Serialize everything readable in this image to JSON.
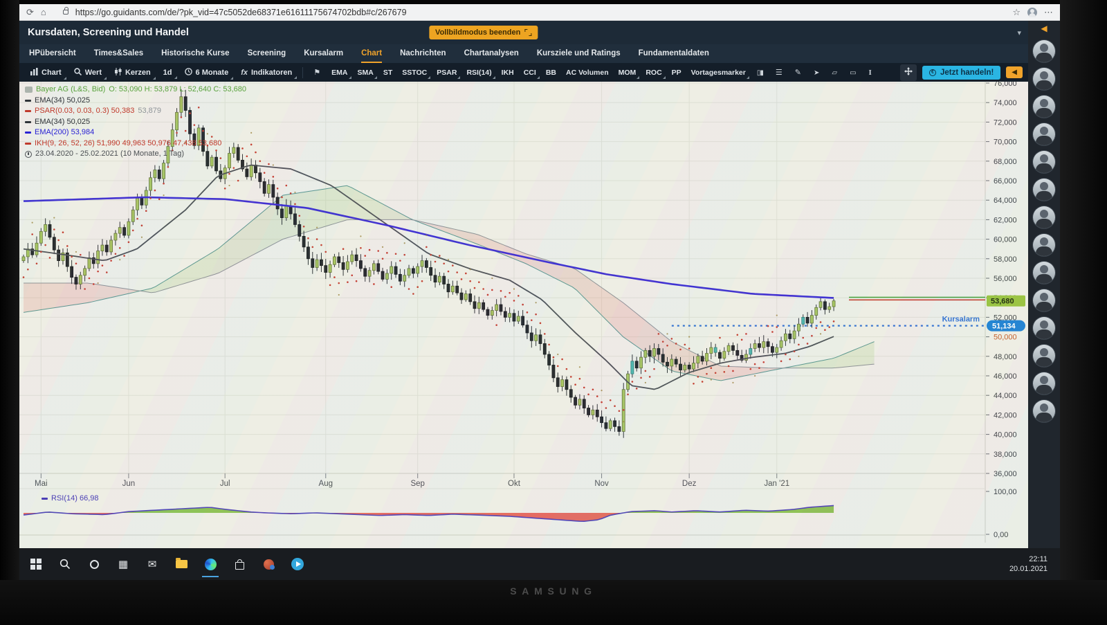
{
  "browser": {
    "url": "https://go.guidants.com/de/?pk_vid=47c5052de68371e61611175674702bdb#c/267679",
    "reload_icon": "reload-icon",
    "home_icon": "home-icon",
    "lock_icon": "lock-icon",
    "star_icon": "star-icon",
    "profile_icon": "profile-icon",
    "menu_icon": "menu-dots-icon"
  },
  "header": {
    "title": "Kursdaten, Screening und Handel",
    "fullscreen_button": "Vollbildmodus beenden"
  },
  "tabs": {
    "items": [
      "HPübersicht",
      "Times&Sales",
      "Historische Kurse",
      "Screening",
      "Kursalarm",
      "Chart",
      "Nachrichten",
      "Chartanalysen",
      "Kursziele und Ratings",
      "Fundamentaldaten"
    ],
    "active": "Chart"
  },
  "toolbar": {
    "groups": [
      {
        "icon": "bar-chart-icon",
        "label": "Chart",
        "chev": true
      },
      {
        "icon": "search-icon",
        "label": "Wert",
        "chev": true
      },
      {
        "icon": "candles-icon",
        "label": "Kerzen",
        "chev": true
      },
      {
        "icon": null,
        "label": "1d",
        "chev": true
      },
      {
        "icon": "clock-icon",
        "label": "6 Monate",
        "chev": true
      },
      {
        "icon": "fx-icon",
        "label": "Indikatoren",
        "chev": true
      }
    ],
    "flag_icon": "flag-icon",
    "indicators": [
      {
        "label": "EMA",
        "chev": true
      },
      {
        "label": "SMA",
        "chev": true
      },
      {
        "label": "ST",
        "chev": false
      },
      {
        "label": "SSTOC",
        "chev": true
      },
      {
        "label": "PSAR",
        "chev": true
      },
      {
        "label": "RSI(14)",
        "chev": true
      },
      {
        "label": "IKH",
        "chev": false
      },
      {
        "label": "CCI",
        "chev": true
      },
      {
        "label": "BB",
        "chev": false
      },
      {
        "label": "AC Volumen",
        "chev": false
      },
      {
        "label": "MOM",
        "chev": true
      },
      {
        "label": "ROC",
        "chev": true
      },
      {
        "label": "PP",
        "chev": false
      },
      {
        "label": "Vortagesmarker",
        "chev": true
      }
    ],
    "tools": [
      "compare-candles-icon",
      "list-icon",
      "pen-icon",
      "cursor-icon",
      "eraser-icon",
      "rectangle-icon",
      "measure-icon"
    ],
    "expand_icon": "expand-arrows-icon",
    "trade_button": "Jetzt handeln!",
    "collapse_icon": "arrow-left-icon"
  },
  "legend": {
    "instrument": "Bayer AG (L&S, Bid)",
    "ohlc": "O: 53,090  H: 53,879  L: 52,640  C: 53,680",
    "items": [
      {
        "color": "#2f3338",
        "label": "EMA(34) 50,025",
        "extra": ""
      },
      {
        "color": "#c0392b",
        "label": "PSAR(0.03, 0.03, 0.3) 50,383",
        "extra": "53,879"
      },
      {
        "color": "#2f3338",
        "label": "EMA(34) 50,025",
        "extra": ""
      },
      {
        "color": "#2a22d4",
        "label": "EMA(200) 53,984",
        "extra": ""
      },
      {
        "color": "#c0392b",
        "label": "IKH(9, 26, 52, 26) 51,990 49,963 50,976 47,438 53,680",
        "extra": ""
      }
    ],
    "period": "23.04.2020 - 25.02.2021  (10 Monate, 1 Tag)"
  },
  "chart_data": {
    "type": "candlestick",
    "instrument": "Bayer AG",
    "interval": "1d",
    "visible_range": "6 Monate",
    "closes": [
      58.2,
      59,
      58.4,
      59.6,
      60.8,
      61.5,
      60.2,
      58.9,
      57.8,
      58.6,
      57.2,
      56.1,
      55.4,
      56.3,
      57,
      58.1,
      57.5,
      58.8,
      59.4,
      58.7,
      59.9,
      60.6,
      61.2,
      60.4,
      61.8,
      63,
      64.2,
      63.5,
      65,
      66.3,
      67.1,
      66.2,
      67.8,
      69.5,
      71.2,
      73,
      74.6,
      73.2,
      70.8,
      69.6,
      71.4,
      69,
      67.5,
      68.4,
      67,
      66.2,
      67.3,
      68.8,
      69.4,
      68.1,
      67.2,
      66.4,
      67.6,
      66.8,
      65.9,
      64.7,
      65.6,
      64.3,
      63.1,
      62.2,
      63.4,
      62.6,
      61.5,
      60.3,
      59.2,
      58,
      57.1,
      57.9,
      57.3,
      56.6,
      57.4,
      58.2,
      57.6,
      56.9,
      57.7,
      58.4,
      57.8,
      57,
      56.2,
      56.8,
      57.5,
      56.7,
      55.9,
      56.5,
      57.2,
      56.4,
      55.7,
      56.3,
      57,
      56.5,
      57.2,
      57.8,
      57.1,
      56.3,
      55.6,
      56.2,
      55.4,
      54.6,
      55.2,
      54.5,
      53.8,
      54.4,
      53.6,
      52.9,
      53.5,
      52.8,
      52.2,
      52.7,
      53.3,
      52.6,
      52,
      52.4,
      51.6,
      52.1,
      51.2,
      50.4,
      49.6,
      50.2,
      49.3,
      48.2,
      47.1,
      45.8,
      44.9,
      45.6,
      44.6,
      43.8,
      43,
      43.6,
      42.7,
      42,
      42.5,
      41.8,
      41.2,
      40.6,
      41.4,
      40.8,
      40.3,
      44.6,
      46.2,
      47.5,
      46.8,
      47.9,
      48.6,
      48,
      48.8,
      48.2,
      47.4,
      47,
      47.7,
      47.2,
      46.6,
      47.1,
      46.7,
      47.3,
      48,
      47.5,
      48.3,
      48.9,
      48.4,
      47.8,
      48.5,
      49.1,
      48.6,
      48.1,
      47.6,
      48.2,
      48.8,
      49.3,
      48.9,
      49.5,
      49,
      48.4,
      48.9,
      49.6,
      50.3,
      49.8,
      50.6,
      51.3,
      52,
      51.4,
      52.2,
      53,
      53.6,
      52.8,
      53.09,
      53.68
    ],
    "last_candle": {
      "o": 53.09,
      "h": 53.879,
      "l": 52.64,
      "c": 53.68
    },
    "teal_indices": [
      139,
      158,
      166,
      178
    ],
    "month_labels": [
      "Mai",
      "Jun",
      "Jul",
      "Aug",
      "Sep",
      "Okt",
      "Nov",
      "Dez",
      "Jan '21"
    ],
    "month_start_indices": [
      4,
      24,
      46,
      69,
      90,
      112,
      132,
      152,
      172
    ],
    "y_tick_values": [
      76000,
      74000,
      72000,
      70000,
      68000,
      66000,
      64000,
      62000,
      60000,
      58000,
      56000,
      54000,
      52000,
      50000,
      48000,
      46000,
      44000,
      42000,
      40000,
      38000,
      36000
    ],
    "y_tick_labels": [
      "76,000",
      "74,000",
      "72,000",
      "70,000",
      "68,000",
      "66,000",
      "64,000",
      "62,000",
      "60,000",
      "58,000",
      "56,000",
      "54,000",
      "52,000",
      "50,000",
      "48,000",
      "46,000",
      "44,000",
      "42,000",
      "40,000",
      "38,000",
      "36,000"
    ],
    "highlight_tick": "50,000",
    "ylim": [
      36000,
      76150
    ],
    "ema200": [
      [
        0,
        63.9
      ],
      [
        0.15,
        64.3
      ],
      [
        0.25,
        64.1
      ],
      [
        0.35,
        63.2
      ],
      [
        0.45,
        61.4
      ],
      [
        0.55,
        59.4
      ],
      [
        0.65,
        57.6
      ],
      [
        0.72,
        56.4
      ],
      [
        0.8,
        55.4
      ],
      [
        0.9,
        54.4
      ],
      [
        1,
        53.98
      ]
    ],
    "ema34": [
      [
        0,
        59
      ],
      [
        0.06,
        58.3
      ],
      [
        0.1,
        57.8
      ],
      [
        0.14,
        59
      ],
      [
        0.2,
        63
      ],
      [
        0.24,
        66.5
      ],
      [
        0.28,
        67.6
      ],
      [
        0.33,
        67.2
      ],
      [
        0.38,
        65.5
      ],
      [
        0.44,
        62
      ],
      [
        0.5,
        58.5
      ],
      [
        0.55,
        57
      ],
      [
        0.6,
        55.8
      ],
      [
        0.64,
        53.8
      ],
      [
        0.68,
        50.5
      ],
      [
        0.72,
        47.5
      ],
      [
        0.75,
        45
      ],
      [
        0.78,
        44.6
      ],
      [
        0.82,
        46.3
      ],
      [
        0.86,
        47.3
      ],
      [
        0.9,
        47.9
      ],
      [
        0.94,
        48.3
      ],
      [
        0.97,
        49
      ],
      [
        1,
        50.03
      ]
    ],
    "senkou_a": [
      [
        0,
        52.5
      ],
      [
        0.08,
        53.5
      ],
      [
        0.16,
        55
      ],
      [
        0.24,
        59
      ],
      [
        0.32,
        64.5
      ],
      [
        0.4,
        65.5
      ],
      [
        0.48,
        62
      ],
      [
        0.56,
        59.5
      ],
      [
        0.62,
        57.5
      ],
      [
        0.68,
        55
      ],
      [
        0.74,
        50
      ],
      [
        0.8,
        46.5
      ],
      [
        0.86,
        45.5
      ],
      [
        0.92,
        46.5
      ],
      [
        1,
        47.8
      ],
      [
        1.05,
        49.5
      ]
    ],
    "senkou_b": [
      [
        0,
        55.5
      ],
      [
        0.08,
        55.5
      ],
      [
        0.16,
        54.5
      ],
      [
        0.24,
        56.5
      ],
      [
        0.32,
        60
      ],
      [
        0.4,
        62
      ],
      [
        0.48,
        62
      ],
      [
        0.56,
        60.5
      ],
      [
        0.62,
        58.5
      ],
      [
        0.68,
        57
      ],
      [
        0.74,
        53.5
      ],
      [
        0.8,
        49.5
      ],
      [
        0.86,
        47
      ],
      [
        0.92,
        46.8
      ],
      [
        1,
        46.8
      ],
      [
        1.05,
        47.2
      ]
    ],
    "rsi": {
      "legend": "RSI(14) 66,98",
      "ticks": [
        "100,00",
        "0,00"
      ],
      "midline": 50,
      "waypoints": [
        [
          0,
          45
        ],
        [
          0.03,
          52
        ],
        [
          0.06,
          48
        ],
        [
          0.1,
          46
        ],
        [
          0.13,
          53
        ],
        [
          0.17,
          57
        ],
        [
          0.2,
          60
        ],
        [
          0.23,
          63
        ],
        [
          0.25,
          58
        ],
        [
          0.28,
          52
        ],
        [
          0.3,
          50
        ],
        [
          0.33,
          48
        ],
        [
          0.36,
          50
        ],
        [
          0.4,
          47
        ],
        [
          0.44,
          44
        ],
        [
          0.47,
          46
        ],
        [
          0.5,
          44
        ],
        [
          0.53,
          47
        ],
        [
          0.56,
          45
        ],
        [
          0.6,
          42
        ],
        [
          0.63,
          38
        ],
        [
          0.66,
          34
        ],
        [
          0.69,
          30
        ],
        [
          0.71,
          34
        ],
        [
          0.725,
          45
        ],
        [
          0.75,
          53
        ],
        [
          0.78,
          55
        ],
        [
          0.8,
          52
        ],
        [
          0.83,
          55
        ],
        [
          0.86,
          52
        ],
        [
          0.89,
          56
        ],
        [
          0.92,
          54
        ],
        [
          0.95,
          58
        ],
        [
          0.97,
          63
        ],
        [
          1,
          67
        ]
      ]
    },
    "levels": {
      "green_line": 54.05,
      "red_line": 53.78,
      "alarm": 51.134,
      "price_tag": "53,680",
      "alarm_tag": "51,134",
      "alarm_label": "Kursalarm",
      "alarm_start_frac": 0.8
    },
    "colors": {
      "up": "#a6c45e",
      "up_border": "#5f7134",
      "down": "#22262a",
      "teal": "#4db6ac",
      "ema200": "#3a2bd0",
      "ema34": "#4a4e54",
      "psar": "#c23b2e",
      "psar2": "#97803a",
      "cloud_red": "rgba(219,124,110,0.22)",
      "cloud_green": "rgba(150,190,110,0.2)",
      "rsi_line": "#4b3fb5",
      "rsi_up": "#7cb93e",
      "rsi_down": "#e25549",
      "tag_green": "#97c13e",
      "tag_blue": "#1b7fd4",
      "alarm_blue": "#2f6fd0",
      "grid": "#dcded4",
      "axis_text": "#3c4043",
      "highlight_text": "#c05a28"
    }
  },
  "sidebar": {
    "avatar_count": 14,
    "collapse_icon": "arrow-left-icon",
    "avatar_name": "expert-avatar"
  },
  "taskbar": {
    "icons": [
      "start",
      "search",
      "cortana",
      "task-view",
      "mail",
      "explorer",
      "edge",
      "store",
      "paint-3d",
      "telegram"
    ],
    "active_icon": "edge",
    "time": "22:11",
    "date": "20.01.2021"
  },
  "monitor": {
    "brand": "SAMSUNG"
  }
}
